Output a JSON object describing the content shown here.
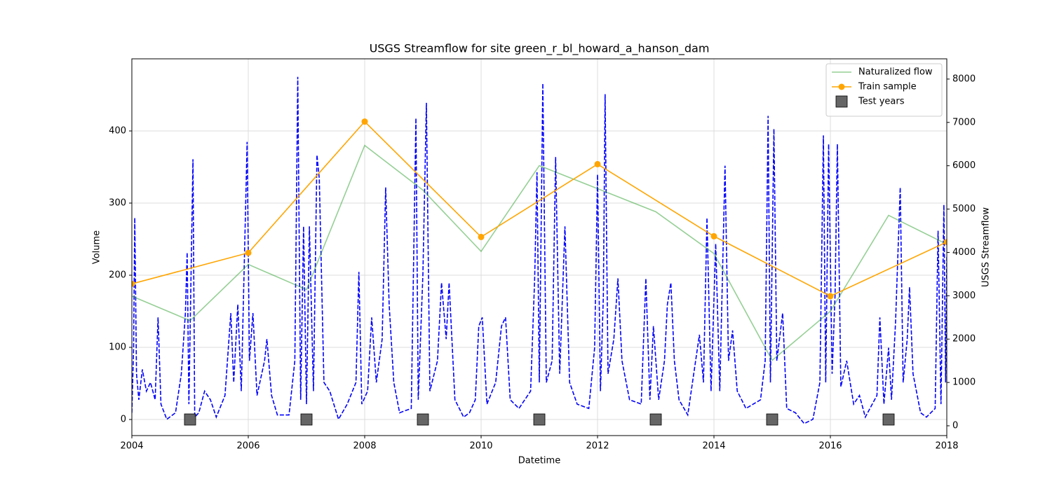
{
  "chart_data": {
    "type": "line",
    "title": "USGS Streamflow for site green_r_bl_howard_a_hanson_dam",
    "x_label": "Datetime",
    "y_label": "Volume",
    "y2_label": "USGS Streamflow",
    "xlim": [
      2004,
      2018
    ],
    "xticks": [
      2004,
      2006,
      2008,
      2010,
      2012,
      2014,
      2016,
      2018
    ],
    "ylim": [
      -22.3,
      500
    ],
    "yticks": [
      0,
      100,
      200,
      300,
      400
    ],
    "y2lim": [
      -226,
      8467
    ],
    "y2ticks": [
      0,
      1000,
      2000,
      3000,
      4000,
      5000,
      6000,
      7000,
      8000
    ],
    "grid": true,
    "legend": "upper right",
    "series": [
      {
        "name": "Naturalized flow",
        "color": "#2ca02c",
        "alpha": 0.5,
        "linestyle": "solid",
        "marker": "none",
        "axis": "y",
        "x": [
          2004,
          2005,
          2006,
          2007,
          2008,
          2009,
          2010,
          2011,
          2012,
          2013,
          2014,
          2015,
          2016,
          2017,
          2018
        ],
        "values": [
          171,
          137,
          215,
          180,
          380,
          318,
          233,
          352,
          320,
          288,
          230,
          82,
          150,
          283,
          243
        ]
      },
      {
        "name": "Train sample",
        "color": "#ffa500",
        "alpha": 1,
        "linestyle": "solid",
        "marker": "o",
        "axis": "y",
        "x": [
          2004,
          2006,
          2008,
          2010,
          2012,
          2014,
          2016,
          2018
        ],
        "values": [
          188,
          231,
          413,
          253,
          354,
          254,
          171,
          246
        ]
      },
      {
        "name": "Test years",
        "color": "#555555",
        "alpha": 0.9,
        "linestyle": "none",
        "marker": "s",
        "axis": "y",
        "x": [
          2005,
          2007,
          2009,
          2011,
          2013,
          2015,
          2017
        ],
        "values": [
          0,
          0,
          0,
          0,
          0,
          0,
          0
        ]
      },
      {
        "color": "#0000ff",
        "alpha": 1,
        "linestyle": "dashed",
        "marker": "none",
        "axis": "y2",
        "x": [
          2004.0,
          2004.03,
          2004.05,
          2004.08,
          2004.12,
          2004.18,
          2004.25,
          2004.32,
          2004.4,
          2004.45,
          2004.5,
          2004.6,
          2004.75,
          2004.85,
          2004.92,
          2004.95,
          2004.98,
          2005.05,
          2005.08,
          2005.15,
          2005.25,
          2005.35,
          2005.45,
          2005.6,
          2005.7,
          2005.75,
          2005.82,
          2005.88,
          2005.95,
          2005.98,
          2006.02,
          2006.08,
          2006.15,
          2006.28,
          2006.32,
          2006.4,
          2006.5,
          2006.7,
          2006.8,
          2006.85,
          2006.9,
          2006.95,
          2007.0,
          2007.05,
          2007.12,
          2007.18,
          2007.22,
          2007.3,
          2007.4,
          2007.55,
          2007.7,
          2007.85,
          2007.9,
          2007.95,
          2008.05,
          2008.12,
          2008.2,
          2008.3,
          2008.36,
          2008.42,
          2008.5,
          2008.6,
          2008.8,
          2008.88,
          2008.92,
          2009.0,
          2009.06,
          2009.12,
          2009.25,
          2009.32,
          2009.4,
          2009.45,
          2009.55,
          2009.7,
          2009.8,
          2009.9,
          2009.96,
          2010.02,
          2010.1,
          2010.25,
          2010.35,
          2010.42,
          2010.5,
          2010.65,
          2010.85,
          2010.92,
          2010.96,
          2011.0,
          2011.06,
          2011.12,
          2011.22,
          2011.28,
          2011.35,
          2011.44,
          2011.52,
          2011.65,
          2011.85,
          2011.95,
          2012.0,
          2012.05,
          2012.1,
          2012.13,
          2012.18,
          2012.28,
          2012.35,
          2012.42,
          2012.55,
          2012.75,
          2012.83,
          2012.9,
          2012.96,
          2013.05,
          2013.15,
          2013.2,
          2013.26,
          2013.32,
          2013.4,
          2013.55,
          2013.75,
          2013.82,
          2013.88,
          2013.95,
          2014.03,
          2014.1,
          2014.19,
          2014.25,
          2014.32,
          2014.4,
          2014.55,
          2014.8,
          2014.88,
          2014.93,
          2014.97,
          2015.03,
          2015.08,
          2015.18,
          2015.25,
          2015.4,
          2015.55,
          2015.7,
          2015.82,
          2015.86,
          2015.88,
          2015.92,
          2015.97,
          2016.03,
          2016.08,
          2016.12,
          2016.18,
          2016.28,
          2016.4,
          2016.5,
          2016.6,
          2016.8,
          2016.85,
          2016.92,
          2017.0,
          2017.05,
          2017.12,
          2017.2,
          2017.25,
          2017.32,
          2017.36,
          2017.42,
          2017.55,
          2017.65,
          2017.8,
          2017.85,
          2017.9,
          2017.95,
          2017.98,
          2018.0
        ],
        "values": [
          300,
          1800,
          4800,
          1200,
          600,
          1300,
          800,
          1000,
          600,
          2500,
          500,
          150,
          300,
          1200,
          2600,
          4000,
          500,
          6150,
          200,
          300,
          800,
          600,
          200,
          700,
          2600,
          1000,
          2800,
          800,
          4800,
          6550,
          1500,
          2600,
          700,
          1500,
          2000,
          700,
          250,
          250,
          1500,
          8050,
          600,
          4600,
          500,
          4600,
          800,
          6250,
          5700,
          1000,
          800,
          150,
          500,
          1000,
          3550,
          500,
          800,
          2500,
          1000,
          2000,
          5500,
          2800,
          1000,
          300,
          400,
          7100,
          600,
          3500,
          7450,
          800,
          1500,
          3300,
          2000,
          3300,
          600,
          200,
          300,
          600,
          2300,
          2500,
          500,
          1000,
          2300,
          2500,
          600,
          400,
          800,
          3400,
          5850,
          1000,
          7900,
          1000,
          1500,
          6200,
          1200,
          4600,
          1000,
          500,
          400,
          1800,
          5800,
          800,
          3000,
          7650,
          1200,
          2000,
          3400,
          1500,
          600,
          500,
          3400,
          600,
          2300,
          600,
          1500,
          2800,
          3300,
          1500,
          600,
          250,
          2100,
          1000,
          4800,
          800,
          4200,
          800,
          6000,
          1500,
          2200,
          800,
          400,
          600,
          1500,
          7150,
          1000,
          6850,
          1500,
          2600,
          400,
          300,
          50,
          150,
          1000,
          4800,
          6700,
          1000,
          6500,
          1200,
          3000,
          6500,
          900,
          1500,
          500,
          700,
          200,
          700,
          2500,
          500,
          1800,
          600,
          2400,
          5500,
          1000,
          2000,
          3200,
          1200,
          300,
          200,
          400,
          4500,
          500,
          5100,
          1000,
          3900
        ]
      }
    ]
  }
}
